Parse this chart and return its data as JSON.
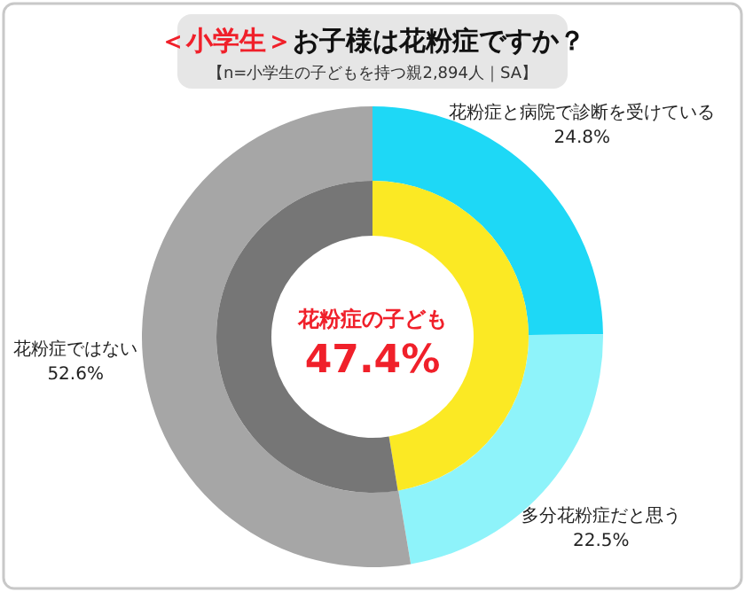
{
  "chart_data": [
    {
      "type": "donut",
      "title": "＜小学生＞お子様は花粉症ですか？",
      "subtitle": "【n=小学生の子どもを持つ親2,894人｜SA】",
      "categories": [
        "花粉症と病院で診断を受けている",
        "多分花粉症だと思う",
        "花粉症ではない"
      ],
      "values": [
        24.8,
        22.5,
        52.6
      ],
      "colors": [
        "#1ed8f6",
        "#8ef3fa",
        "#a6a6a6"
      ],
      "value_labels": [
        "24.8%",
        "22.5%",
        "52.6%"
      ]
    },
    {
      "type": "donut",
      "categories": [
        "花粉症の子ども",
        null
      ],
      "values": [
        47.4,
        52.6
      ],
      "colors": [
        "#fbe924",
        "#767676"
      ],
      "value_labels": [
        "47.4%",
        null
      ]
    }
  ]
}
